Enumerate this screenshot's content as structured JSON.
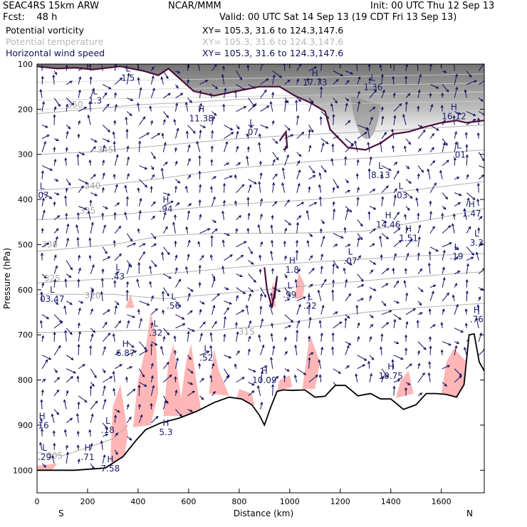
{
  "header": {
    "model": "SEAC4RS 15km ARW",
    "forecast": "Fcst:    48 h",
    "org": "NCAR/MMM",
    "init": "Init: 00 UTC Thu 12 Sep 13",
    "valid": "Valid: 00 UTC Sat 14 Sep 13 (19 CDT Fri 13 Sep 13)"
  },
  "fields": [
    {
      "name": "Potential vorticity",
      "xy": "XY= 105.3, 31.6 to 124.3,147.6",
      "color": "#000000"
    },
    {
      "name": "Potential temperature",
      "xy": "XY= 105.3, 31.6 to 124.3,147.6",
      "color": "#b8b8b8"
    },
    {
      "name": "Horizontal wind speed",
      "xy": "XY= 105.3, 31.6 to 124.3,147.6",
      "color": "#10105e"
    }
  ],
  "colors": {
    "pv_shading": "#ffb6b6",
    "wind_vectors": "#10105e",
    "theta_contours": "#b0b0b0",
    "pv_contour": "#4a0f3e",
    "terrain": "#000000"
  },
  "chart_data": {
    "type": "cross-section",
    "xlabel": "Distance (km)",
    "ylabel": "Pressure (hPa)",
    "xlim": [
      0,
      1770
    ],
    "ylim": [
      1050,
      100
    ],
    "x_ticks": [
      "0",
      "200",
      "400",
      "600",
      "800",
      "1000",
      "1200",
      "1400",
      "1600"
    ],
    "y_ticks": [
      "100",
      "200",
      "300",
      "400",
      "500",
      "600",
      "700",
      "800",
      "900",
      "1000"
    ],
    "x_end_labels": {
      "left": "S",
      "right": "N"
    },
    "terrain_surface": [
      {
        "x": 0,
        "p": 1000
      },
      {
        "x": 150,
        "p": 1000
      },
      {
        "x": 270,
        "p": 995
      },
      {
        "x": 340,
        "p": 970
      },
      {
        "x": 390,
        "p": 935
      },
      {
        "x": 430,
        "p": 910
      },
      {
        "x": 490,
        "p": 895
      },
      {
        "x": 560,
        "p": 885
      },
      {
        "x": 630,
        "p": 870
      },
      {
        "x": 700,
        "p": 850
      },
      {
        "x": 760,
        "p": 838
      },
      {
        "x": 810,
        "p": 842
      },
      {
        "x": 850,
        "p": 855
      },
      {
        "x": 880,
        "p": 878
      },
      {
        "x": 900,
        "p": 900
      },
      {
        "x": 925,
        "p": 860
      },
      {
        "x": 950,
        "p": 825
      },
      {
        "x": 975,
        "p": 822
      },
      {
        "x": 1010,
        "p": 823
      },
      {
        "x": 1060,
        "p": 822
      },
      {
        "x": 1100,
        "p": 838
      },
      {
        "x": 1140,
        "p": 836
      },
      {
        "x": 1180,
        "p": 812
      },
      {
        "x": 1220,
        "p": 812
      },
      {
        "x": 1270,
        "p": 835
      },
      {
        "x": 1320,
        "p": 830
      },
      {
        "x": 1360,
        "p": 842
      },
      {
        "x": 1400,
        "p": 842
      },
      {
        "x": 1450,
        "p": 865
      },
      {
        "x": 1500,
        "p": 855
      },
      {
        "x": 1540,
        "p": 830
      },
      {
        "x": 1580,
        "p": 830
      },
      {
        "x": 1620,
        "p": 832
      },
      {
        "x": 1660,
        "p": 838
      },
      {
        "x": 1690,
        "p": 810
      },
      {
        "x": 1710,
        "p": 700
      },
      {
        "x": 1730,
        "p": 698
      },
      {
        "x": 1750,
        "p": 760
      },
      {
        "x": 1770,
        "p": 780
      }
    ],
    "theta_contours": [
      {
        "label": "305",
        "points": [
          [
            0,
            960
          ],
          [
            100,
            968
          ],
          [
            200,
            950
          ],
          [
            300,
            930
          ],
          [
            360,
            900
          ]
        ],
        "label_at": [
          70,
          968
        ]
      },
      {
        "label": "315",
        "points": [
          [
            0,
            695
          ],
          [
            400,
            690
          ],
          [
            700,
            690
          ],
          [
            900,
            680
          ],
          [
            1300,
            650
          ],
          [
            1500,
            640
          ],
          [
            1770,
            630
          ]
        ],
        "label_at": [
          830,
          693
        ]
      },
      {
        "label": "320",
        "points": [
          [
            0,
            610
          ],
          [
            300,
            610
          ],
          [
            500,
            620
          ],
          [
            800,
            605
          ],
          [
            1100,
            590
          ],
          [
            1400,
            575
          ],
          [
            1770,
            560
          ]
        ],
        "label_at": [
          220,
          613
        ]
      },
      {
        "label": "325",
        "points": [
          [
            0,
            585
          ],
          [
            300,
            575
          ],
          [
            600,
            560
          ],
          [
            900,
            545
          ],
          [
            1200,
            535
          ],
          [
            1500,
            525
          ],
          [
            1770,
            520
          ]
        ],
        "label_at": [
          60,
          575
        ]
      },
      {
        "label": "330",
        "points": [
          [
            0,
            515
          ],
          [
            300,
            500
          ],
          [
            500,
            480
          ],
          [
            700,
            475
          ],
          [
            1000,
            475
          ],
          [
            1300,
            470
          ],
          [
            1600,
            440
          ],
          [
            1770,
            420
          ]
        ],
        "label_at": [
          50,
          500
        ]
      },
      {
        "label": "335",
        "points": [
          [
            0,
            445
          ],
          [
            200,
            440
          ],
          [
            400,
            430
          ],
          [
            600,
            420
          ],
          [
            800,
            410
          ],
          [
            1100,
            400
          ],
          [
            1400,
            385
          ],
          [
            1770,
            360
          ]
        ],
        "label_at": [
          200,
          425
        ]
      },
      {
        "label": "340",
        "points": [
          [
            0,
            380
          ],
          [
            200,
            372
          ],
          [
            400,
            360
          ],
          [
            600,
            345
          ],
          [
            800,
            330
          ],
          [
            1100,
            315
          ],
          [
            1400,
            305
          ],
          [
            1770,
            290
          ]
        ],
        "label_at": [
          220,
          370
        ]
      },
      {
        "label": "345",
        "points": [
          [
            0,
            300
          ],
          [
            200,
            295
          ],
          [
            400,
            285
          ],
          [
            600,
            275
          ],
          [
            800,
            265
          ],
          [
            1000,
            258
          ],
          [
            1300,
            250
          ],
          [
            1770,
            235
          ]
        ],
        "label_at": [
          270,
          290
        ]
      },
      {
        "label": "350",
        "points": [
          [
            0,
            210
          ],
          [
            200,
            200
          ],
          [
            400,
            190
          ],
          [
            600,
            185
          ],
          [
            800,
            178
          ],
          [
            1000,
            175
          ],
          [
            1300,
            170
          ],
          [
            1770,
            160
          ]
        ],
        "label_at": [
          150,
          190
        ]
      }
    ],
    "pv_contour": [
      [
        0,
        105
      ],
      [
        80,
        110
      ],
      [
        150,
        108
      ],
      [
        220,
        112
      ],
      [
        330,
        105
      ],
      [
        420,
        115
      ],
      [
        480,
        125
      ],
      [
        520,
        110
      ],
      [
        620,
        160
      ],
      [
        700,
        170
      ],
      [
        790,
        160
      ],
      [
        880,
        150
      ],
      [
        960,
        150
      ],
      [
        1020,
        170
      ],
      [
        1080,
        185
      ],
      [
        1140,
        205
      ],
      [
        1160,
        245
      ],
      [
        1230,
        285
      ],
      [
        1300,
        290
      ],
      [
        1360,
        275
      ],
      [
        1410,
        255
      ],
      [
        1470,
        250
      ],
      [
        1530,
        240
      ],
      [
        1600,
        230
      ],
      [
        1660,
        225
      ],
      [
        1700,
        230
      ],
      [
        1770,
        225
      ]
    ],
    "extrema": [
      {
        "type": "L",
        "value": "1.5",
        "x": 360,
        "p": 120
      },
      {
        "type": "L",
        "value": "1.3",
        "x": 230,
        "p": 170
      },
      {
        "type": "H",
        "value": "11.38",
        "x": 650,
        "p": 210
      },
      {
        "type": "L",
        "value": ".07",
        "x": 850,
        "p": 240
      },
      {
        "type": "H",
        "value": "17.73",
        "x": 1100,
        "p": 130
      },
      {
        "type": "L",
        "value": "1.36",
        "x": 1330,
        "p": 140
      },
      {
        "type": "H",
        "value": "16.12",
        "x": 1650,
        "p": 205
      },
      {
        "type": "L",
        "value": ".01",
        "x": 1670,
        "p": 290
      },
      {
        "type": "L",
        "value": "8.13",
        "x": 1360,
        "p": 335
      },
      {
        "type": "L",
        "value": ".03",
        "x": 1440,
        "p": 380
      },
      {
        "type": "L",
        "value": ".07",
        "x": 20,
        "p": 380
      },
      {
        "type": "H",
        "value": ".94",
        "x": 510,
        "p": 410
      },
      {
        "type": "H",
        "value": "1.47",
        "x": 1720,
        "p": 420
      },
      {
        "type": "H",
        "value": "14.46",
        "x": 1390,
        "p": 445
      },
      {
        "type": "H",
        "value": "1.51",
        "x": 1470,
        "p": 475
      },
      {
        "type": "L",
        "value": "3.3",
        "x": 1740,
        "p": 485
      },
      {
        "type": "L",
        "value": ".19",
        "x": 1660,
        "p": 515
      },
      {
        "type": "L",
        "value": ".07",
        "x": 1240,
        "p": 525
      },
      {
        "type": "H",
        "value": "1.8",
        "x": 1010,
        "p": 545
      },
      {
        "type": "L",
        "value": ".43",
        "x": 320,
        "p": 560
      },
      {
        "type": "L",
        "value": ".99",
        "x": 1000,
        "p": 600
      },
      {
        "type": "L",
        "value": "03.47",
        "x": 60,
        "p": 610
      },
      {
        "type": "L",
        "value": ".56",
        "x": 540,
        "p": 625
      },
      {
        "type": "L",
        "value": ".22",
        "x": 1080,
        "p": 625
      },
      {
        "type": "H",
        "value": ".76",
        "x": 1740,
        "p": 655
      },
      {
        "type": "L",
        "value": ".32",
        "x": 470,
        "p": 685
      },
      {
        "type": "H",
        "value": "6.87",
        "x": 350,
        "p": 730
      },
      {
        "type": "L",
        "value": ".52",
        "x": 670,
        "p": 740
      },
      {
        "type": "H",
        "value": "10.09",
        "x": 900,
        "p": 790
      },
      {
        "type": "H",
        "value": "10.75",
        "x": 1400,
        "p": 780
      },
      {
        "type": "L",
        "value": ".18",
        "x": 280,
        "p": 900
      },
      {
        "type": "H",
        "value": "5.3",
        "x": 510,
        "p": 905
      },
      {
        "type": "H",
        "value": ".16",
        "x": 20,
        "p": 890
      },
      {
        "type": "L",
        "value": ".29",
        "x": 30,
        "p": 960
      },
      {
        "type": "H",
        "value": ".71",
        "x": 200,
        "p": 960
      },
      {
        "type": "H",
        "value": "7.58",
        "x": 290,
        "p": 985
      }
    ]
  }
}
